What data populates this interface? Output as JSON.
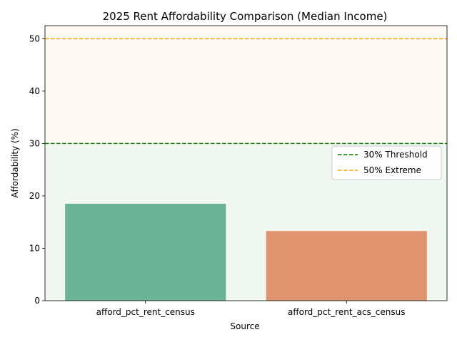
{
  "chart_data": {
    "type": "bar",
    "title": "2025 Rent Affordability Comparison (Median Income)",
    "xlabel": "Source",
    "ylabel": "Affordability (%)",
    "categories": [
      "afford_pct_rent_census",
      "afford_pct_rent_acs_census"
    ],
    "values": [
      18.5,
      13.3
    ],
    "bar_colors": [
      "#6cb398",
      "#e09470"
    ],
    "ylim": [
      0,
      52.5
    ],
    "yticks": [
      0,
      10,
      20,
      30,
      40,
      50
    ],
    "grid": false,
    "reference_lines": [
      {
        "label": "30% Threshold",
        "value": 30,
        "color": "#008000",
        "style": "dashed"
      },
      {
        "label": "50% Extreme",
        "value": 50,
        "color": "#ffa500",
        "style": "dashed"
      }
    ],
    "shaded_bands": [
      {
        "from": 0,
        "to": 30,
        "color": "#f1f8f1"
      },
      {
        "from": 30,
        "to": 52.5,
        "color": "#fff9f3"
      }
    ],
    "legend_position": "center-right"
  }
}
